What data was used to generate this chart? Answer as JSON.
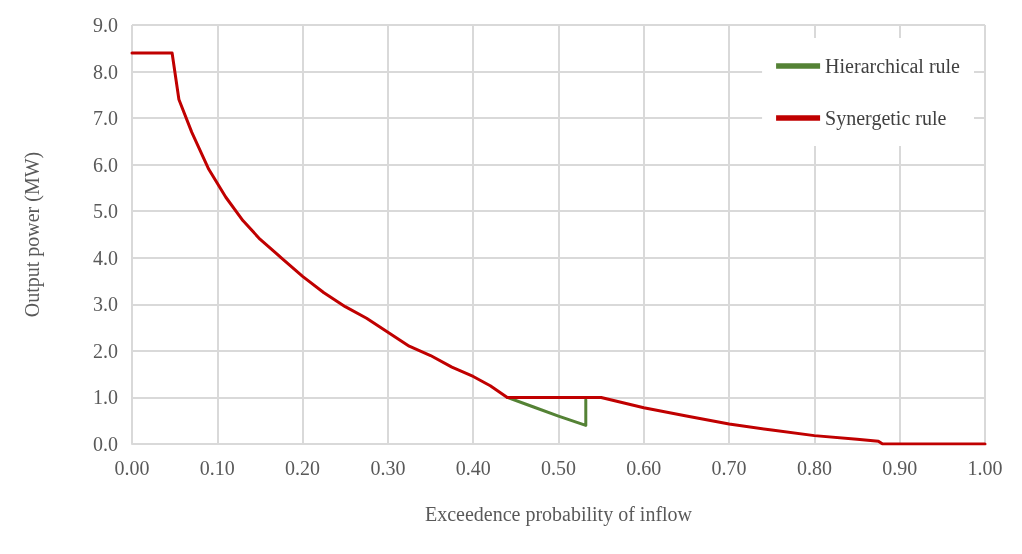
{
  "chart_data": {
    "type": "line",
    "xlabel": "Exceedence probability of inflow",
    "ylabel": "Output power (MW)",
    "xlim": [
      0,
      1
    ],
    "xticks": [
      {
        "value": 0,
        "label": "0.00"
      },
      {
        "value": 0.1,
        "label": "0.10"
      },
      {
        "value": 0.2,
        "label": "0.20"
      },
      {
        "value": 0.3,
        "label": "0.30"
      },
      {
        "value": 0.4,
        "label": "0.40"
      },
      {
        "value": 0.5,
        "label": "0.50"
      },
      {
        "value": 0.6,
        "label": "0.60"
      },
      {
        "value": 0.7,
        "label": "0.70"
      },
      {
        "value": 0.8,
        "label": "0.80"
      },
      {
        "value": 0.9,
        "label": "0.90"
      },
      {
        "value": 1,
        "label": "1.00"
      }
    ],
    "ylim": [
      0,
      9
    ],
    "yticks": [
      {
        "value": 0,
        "label": "0.0"
      },
      {
        "value": 1,
        "label": "1.0"
      },
      {
        "value": 2,
        "label": "2.0"
      },
      {
        "value": 3,
        "label": "3.0"
      },
      {
        "value": 4,
        "label": "4.0"
      },
      {
        "value": 5,
        "label": "5.0"
      },
      {
        "value": 6,
        "label": "6.0"
      },
      {
        "value": 7,
        "label": "7.0"
      },
      {
        "value": 8,
        "label": "8.0"
      },
      {
        "value": 9,
        "label": "9.0"
      }
    ],
    "grid": true,
    "legend": "top right",
    "marker": "none",
    "line_style": "solid",
    "series": [
      {
        "name": "Hierarchical rule",
        "color": "#548235",
        "x": [
          0.44,
          0.47,
          0.5,
          0.532,
          0.532
        ],
        "values": [
          1.0,
          0.8,
          0.6,
          0.4,
          0.95
        ]
      },
      {
        "name": "Synergetic rule",
        "color": "#c00000",
        "x": [
          0,
          0.047,
          0.055,
          0.07,
          0.09,
          0.11,
          0.13,
          0.15,
          0.175,
          0.2,
          0.225,
          0.25,
          0.275,
          0.3,
          0.325,
          0.35,
          0.375,
          0.4,
          0.42,
          0.44,
          0.55,
          0.6,
          0.65,
          0.7,
          0.75,
          0.8,
          0.85,
          0.875,
          0.88,
          1
        ],
        "values": [
          8.4,
          8.4,
          7.4,
          6.7,
          5.9,
          5.3,
          4.8,
          4.4,
          4.0,
          3.6,
          3.25,
          2.95,
          2.7,
          2.4,
          2.1,
          1.9,
          1.65,
          1.45,
          1.25,
          1.0,
          1.0,
          0.78,
          0.6,
          0.43,
          0.3,
          0.18,
          0.1,
          0.06,
          0,
          0
        ]
      }
    ]
  }
}
